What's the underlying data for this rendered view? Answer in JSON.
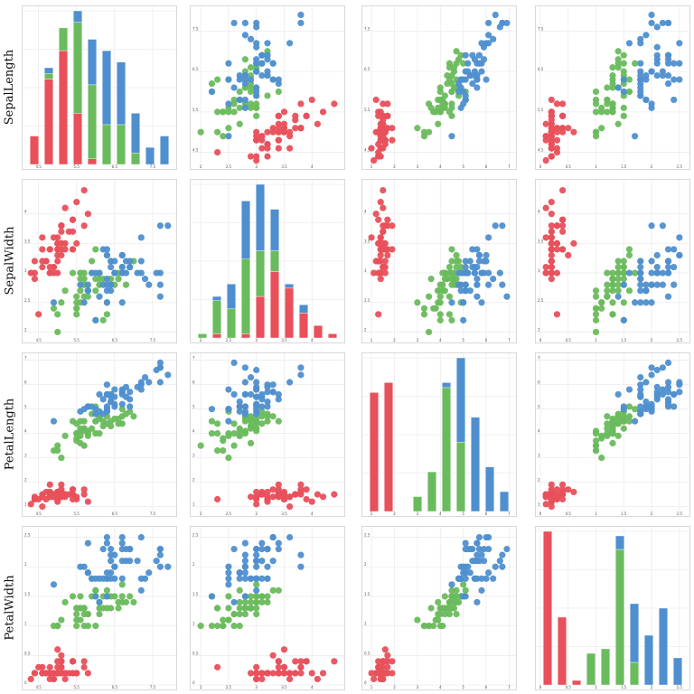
{
  "chart_data": {
    "type": "scatter",
    "title": "",
    "variables": [
      "SepalLength",
      "SepalWidth",
      "PetalLength",
      "PetalWidth"
    ],
    "ranges": {
      "SepalLength": [
        4.2,
        8.0
      ],
      "SepalWidth": [
        1.9,
        4.5
      ],
      "PetalLength": [
        0.8,
        7.1
      ],
      "PetalWidth": [
        0.0,
        2.6
      ]
    },
    "ticks": {
      "SepalLength": [
        4.5,
        5.5,
        6.5,
        7.5
      ],
      "SepalWidth": [
        2.0,
        2.5,
        3.0,
        3.5,
        4.0
      ],
      "PetalLength": [
        1,
        2,
        3,
        4,
        5,
        6,
        7
      ],
      "PetalWidth": [
        0.0,
        0.5,
        1.0,
        1.5,
        2.0,
        2.5
      ]
    },
    "grid": true,
    "legend": "none",
    "series": [
      {
        "color": "#e8505b",
        "points": [
          [
            5.1,
            3.5,
            1.4,
            0.2
          ],
          [
            4.9,
            3.0,
            1.4,
            0.2
          ],
          [
            4.7,
            3.2,
            1.3,
            0.2
          ],
          [
            4.6,
            3.1,
            1.5,
            0.2
          ],
          [
            5.0,
            3.6,
            1.4,
            0.2
          ],
          [
            5.4,
            3.9,
            1.7,
            0.4
          ],
          [
            4.6,
            3.4,
            1.4,
            0.3
          ],
          [
            5.0,
            3.4,
            1.5,
            0.2
          ],
          [
            4.4,
            2.9,
            1.4,
            0.2
          ],
          [
            4.9,
            3.1,
            1.5,
            0.1
          ],
          [
            5.4,
            3.7,
            1.5,
            0.2
          ],
          [
            4.8,
            3.4,
            1.6,
            0.2
          ],
          [
            4.8,
            3.0,
            1.4,
            0.1
          ],
          [
            4.3,
            3.0,
            1.1,
            0.1
          ],
          [
            5.8,
            4.0,
            1.2,
            0.2
          ],
          [
            5.7,
            4.4,
            1.5,
            0.4
          ],
          [
            5.4,
            3.9,
            1.3,
            0.4
          ],
          [
            5.1,
            3.5,
            1.4,
            0.3
          ],
          [
            5.7,
            3.8,
            1.7,
            0.3
          ],
          [
            5.1,
            3.8,
            1.5,
            0.3
          ],
          [
            5.4,
            3.4,
            1.7,
            0.2
          ],
          [
            5.1,
            3.7,
            1.5,
            0.4
          ],
          [
            4.6,
            3.6,
            1.0,
            0.2
          ],
          [
            5.1,
            3.3,
            1.7,
            0.5
          ],
          [
            4.8,
            3.4,
            1.9,
            0.2
          ],
          [
            5.0,
            3.0,
            1.6,
            0.2
          ],
          [
            5.0,
            3.4,
            1.6,
            0.4
          ],
          [
            5.2,
            3.5,
            1.5,
            0.2
          ],
          [
            5.2,
            3.4,
            1.4,
            0.2
          ],
          [
            4.7,
            3.2,
            1.6,
            0.2
          ],
          [
            4.8,
            3.1,
            1.6,
            0.2
          ],
          [
            5.4,
            3.4,
            1.5,
            0.4
          ],
          [
            5.2,
            4.1,
            1.5,
            0.1
          ],
          [
            5.5,
            4.2,
            1.4,
            0.2
          ],
          [
            4.9,
            3.1,
            1.5,
            0.2
          ],
          [
            5.0,
            3.2,
            1.2,
            0.2
          ],
          [
            5.5,
            3.5,
            1.3,
            0.2
          ],
          [
            4.9,
            3.6,
            1.4,
            0.1
          ],
          [
            4.4,
            3.0,
            1.3,
            0.2
          ],
          [
            5.1,
            3.4,
            1.5,
            0.2
          ],
          [
            5.0,
            3.5,
            1.3,
            0.3
          ],
          [
            4.5,
            2.3,
            1.3,
            0.3
          ],
          [
            4.4,
            3.2,
            1.3,
            0.2
          ],
          [
            5.0,
            3.5,
            1.6,
            0.6
          ],
          [
            5.1,
            3.8,
            1.9,
            0.4
          ],
          [
            4.8,
            3.0,
            1.4,
            0.3
          ],
          [
            5.1,
            3.8,
            1.6,
            0.2
          ],
          [
            4.6,
            3.2,
            1.4,
            0.2
          ],
          [
            5.3,
            3.7,
            1.5,
            0.2
          ],
          [
            5.0,
            3.3,
            1.4,
            0.2
          ]
        ]
      },
      {
        "color": "#6abb5d",
        "points": [
          [
            7.0,
            3.2,
            4.7,
            1.4
          ],
          [
            6.4,
            3.2,
            4.5,
            1.5
          ],
          [
            6.9,
            3.1,
            4.9,
            1.5
          ],
          [
            5.5,
            2.3,
            4.0,
            1.3
          ],
          [
            6.5,
            2.8,
            4.6,
            1.5
          ],
          [
            5.7,
            2.8,
            4.5,
            1.3
          ],
          [
            6.3,
            3.3,
            4.7,
            1.6
          ],
          [
            4.9,
            2.4,
            3.3,
            1.0
          ],
          [
            6.6,
            2.9,
            4.6,
            1.3
          ],
          [
            5.2,
            2.7,
            3.9,
            1.4
          ],
          [
            5.0,
            2.0,
            3.5,
            1.0
          ],
          [
            5.9,
            3.0,
            4.2,
            1.5
          ],
          [
            6.0,
            2.2,
            4.0,
            1.0
          ],
          [
            6.1,
            2.9,
            4.7,
            1.4
          ],
          [
            5.6,
            2.9,
            3.6,
            1.3
          ],
          [
            6.7,
            3.1,
            4.4,
            1.4
          ],
          [
            5.6,
            3.0,
            4.5,
            1.5
          ],
          [
            5.8,
            2.7,
            4.1,
            1.0
          ],
          [
            6.2,
            2.2,
            4.5,
            1.5
          ],
          [
            5.6,
            2.5,
            3.9,
            1.1
          ],
          [
            5.9,
            3.2,
            4.8,
            1.8
          ],
          [
            6.1,
            2.8,
            4.0,
            1.3
          ],
          [
            6.3,
            2.5,
            4.9,
            1.5
          ],
          [
            6.1,
            2.8,
            4.7,
            1.2
          ],
          [
            6.4,
            2.9,
            4.3,
            1.3
          ],
          [
            6.6,
            3.0,
            4.4,
            1.4
          ],
          [
            6.8,
            2.8,
            4.8,
            1.4
          ],
          [
            6.7,
            3.0,
            5.0,
            1.7
          ],
          [
            6.0,
            2.9,
            4.5,
            1.5
          ],
          [
            5.7,
            2.6,
            3.5,
            1.0
          ],
          [
            5.5,
            2.4,
            3.8,
            1.1
          ],
          [
            5.5,
            2.4,
            3.7,
            1.0
          ],
          [
            5.8,
            2.7,
            3.9,
            1.2
          ],
          [
            6.0,
            2.7,
            5.1,
            1.6
          ],
          [
            5.4,
            3.0,
            4.5,
            1.5
          ],
          [
            6.0,
            3.4,
            4.5,
            1.6
          ],
          [
            6.7,
            3.1,
            4.7,
            1.5
          ],
          [
            6.3,
            2.3,
            4.4,
            1.3
          ],
          [
            5.6,
            3.0,
            4.1,
            1.3
          ],
          [
            5.5,
            2.5,
            4.0,
            1.3
          ],
          [
            5.5,
            2.6,
            4.4,
            1.2
          ],
          [
            6.1,
            3.0,
            4.6,
            1.4
          ],
          [
            5.8,
            2.6,
            4.0,
            1.2
          ],
          [
            5.0,
            2.3,
            3.3,
            1.0
          ],
          [
            5.6,
            2.7,
            4.2,
            1.3
          ],
          [
            5.7,
            3.0,
            4.2,
            1.2
          ],
          [
            5.7,
            2.9,
            4.2,
            1.3
          ],
          [
            6.2,
            2.9,
            4.3,
            1.3
          ],
          [
            5.1,
            2.5,
            3.0,
            1.1
          ],
          [
            5.7,
            2.8,
            4.1,
            1.3
          ]
        ]
      },
      {
        "color": "#4f8fcf",
        "points": [
          [
            6.3,
            3.3,
            6.0,
            2.5
          ],
          [
            5.8,
            2.7,
            5.1,
            1.9
          ],
          [
            7.1,
            3.0,
            5.9,
            2.1
          ],
          [
            6.3,
            2.9,
            5.6,
            1.8
          ],
          [
            6.5,
            3.0,
            5.8,
            2.2
          ],
          [
            7.6,
            3.0,
            6.6,
            2.1
          ],
          [
            4.9,
            2.5,
            4.5,
            1.7
          ],
          [
            7.3,
            2.9,
            6.3,
            1.8
          ],
          [
            6.7,
            2.5,
            5.8,
            1.8
          ],
          [
            7.2,
            3.6,
            6.1,
            2.5
          ],
          [
            6.5,
            3.2,
            5.1,
            2.0
          ],
          [
            6.4,
            2.7,
            5.3,
            1.9
          ],
          [
            6.8,
            3.0,
            5.5,
            2.1
          ],
          [
            5.7,
            2.5,
            5.0,
            2.0
          ],
          [
            5.8,
            2.8,
            5.1,
            2.4
          ],
          [
            6.4,
            3.2,
            5.3,
            2.3
          ],
          [
            6.5,
            3.0,
            5.5,
            1.8
          ],
          [
            7.7,
            3.8,
            6.7,
            2.2
          ],
          [
            7.7,
            2.6,
            6.9,
            2.3
          ],
          [
            6.0,
            2.2,
            5.0,
            1.5
          ],
          [
            6.9,
            3.2,
            5.7,
            2.3
          ],
          [
            5.6,
            2.8,
            4.9,
            2.0
          ],
          [
            7.7,
            2.8,
            6.7,
            2.0
          ],
          [
            6.3,
            2.7,
            4.9,
            1.8
          ],
          [
            6.7,
            3.3,
            5.7,
            2.1
          ],
          [
            7.2,
            3.2,
            6.0,
            1.8
          ],
          [
            6.2,
            2.8,
            4.8,
            1.8
          ],
          [
            6.1,
            3.0,
            4.9,
            1.8
          ],
          [
            6.4,
            2.8,
            5.6,
            2.1
          ],
          [
            7.2,
            3.0,
            5.8,
            1.6
          ],
          [
            7.4,
            2.8,
            6.1,
            1.9
          ],
          [
            7.9,
            3.8,
            6.4,
            2.0
          ],
          [
            6.4,
            2.8,
            5.6,
            2.2
          ],
          [
            6.3,
            2.8,
            5.1,
            1.5
          ],
          [
            6.1,
            2.6,
            5.6,
            1.4
          ],
          [
            7.7,
            3.0,
            6.1,
            2.3
          ],
          [
            6.3,
            3.4,
            5.6,
            2.4
          ],
          [
            6.4,
            3.1,
            5.5,
            1.8
          ],
          [
            6.0,
            3.0,
            4.8,
            1.8
          ],
          [
            6.9,
            3.1,
            5.4,
            2.1
          ],
          [
            6.7,
            3.1,
            5.6,
            2.4
          ],
          [
            6.9,
            3.1,
            5.1,
            2.3
          ],
          [
            5.8,
            2.7,
            5.1,
            1.9
          ],
          [
            6.8,
            3.2,
            5.9,
            2.3
          ],
          [
            6.7,
            3.3,
            5.7,
            2.5
          ],
          [
            6.7,
            3.0,
            5.2,
            2.3
          ],
          [
            6.3,
            2.5,
            5.0,
            1.9
          ],
          [
            6.5,
            3.0,
            5.2,
            2.0
          ],
          [
            6.2,
            3.4,
            5.4,
            2.3
          ],
          [
            5.9,
            3.0,
            5.1,
            1.8
          ]
        ]
      }
    ],
    "histograms": {
      "type": "bar",
      "stacked": true,
      "bins": 10
    }
  }
}
